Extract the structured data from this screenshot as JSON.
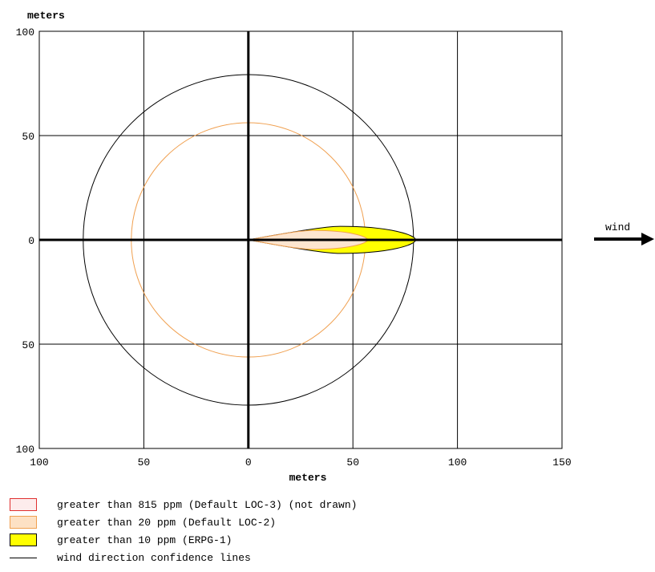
{
  "chart_data": {
    "type": "threat-zone",
    "xlabel": "meters",
    "ylabel": "meters",
    "xlim": [
      -100,
      150
    ],
    "ylim": [
      -100,
      100
    ],
    "x_ticks": [
      {
        "value": -100,
        "label": "100"
      },
      {
        "value": -50,
        "label": "50"
      },
      {
        "value": 0,
        "label": "0"
      },
      {
        "value": 50,
        "label": "50"
      },
      {
        "value": 100,
        "label": "100"
      },
      {
        "value": 150,
        "label": "150"
      }
    ],
    "y_ticks": [
      {
        "value": 100,
        "label": "100"
      },
      {
        "value": 50,
        "label": "50"
      },
      {
        "value": 0,
        "label": "0"
      },
      {
        "value": -50,
        "label": "50"
      },
      {
        "value": -100,
        "label": "100"
      }
    ],
    "grid": true,
    "wind_label": "wind",
    "circles": [
      {
        "name": "outer",
        "radius": 79,
        "color": "#000000"
      },
      {
        "name": "inner",
        "radius": 56,
        "color": "#f0a050"
      }
    ],
    "zones": [
      {
        "name": "greater than 10 ppm (ERPG-1)",
        "length": 80,
        "half_width": 6.5,
        "fill": "#ffff00",
        "stroke": "#000000"
      },
      {
        "name": "greater than 20 ppm (Default LOC-2)",
        "length": 57,
        "half_width": 4.5,
        "fill": "#fde5cf",
        "stroke": "#f0a050"
      }
    ]
  },
  "legend": [
    {
      "label": "greater than 815 ppm (Default LOC-3) (not drawn)",
      "fill": "#fdecec",
      "stroke": "#e03030",
      "kind": "swatch"
    },
    {
      "label": "greater than 20 ppm (Default LOC-2)",
      "fill": "#fde1c4",
      "stroke": "#f0a050",
      "kind": "swatch"
    },
    {
      "label": "greater than 10 ppm (ERPG-1)",
      "fill": "#ffff00",
      "stroke": "#000000",
      "kind": "swatch"
    },
    {
      "label": "wind direction confidence lines",
      "kind": "line"
    }
  ]
}
